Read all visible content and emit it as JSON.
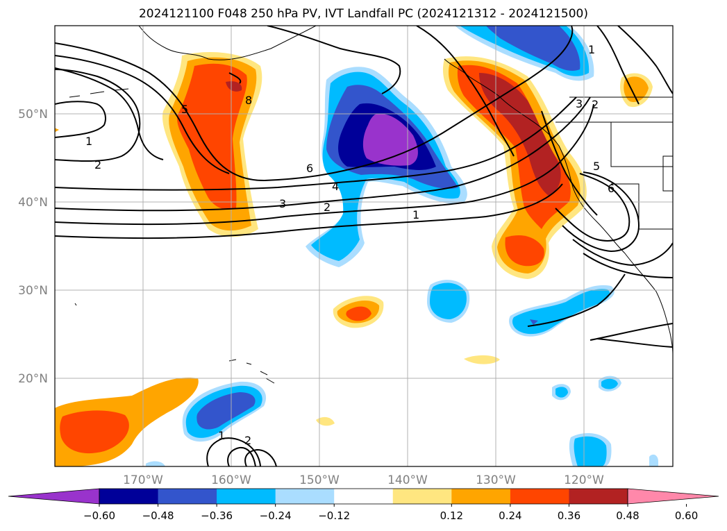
{
  "title": "2024121100 F048 250 hPa PV, IVT Landfall PC (2024121312 - 2024121500)",
  "lat_labels": [
    "50°N",
    "40°N",
    "30°N",
    "20°N"
  ],
  "lon_labels": [
    "170°W",
    "160°W",
    "150°W",
    "140°W",
    "130°W",
    "120°W"
  ],
  "colorbar": {
    "ticks": [
      "−0.60",
      "−0.48",
      "−0.36",
      "−0.24",
      "−0.12",
      "0.12",
      "0.24",
      "0.36",
      "0.48",
      "0.60"
    ],
    "colors": [
      "#9933cc",
      "#000099",
      "#3355cc",
      "#00bbff",
      "#aaddff",
      "#ffffff",
      "#ffe680",
      "#ffa500",
      "#ff4500",
      "#b22222",
      "#ff88aa"
    ]
  },
  "contour_labels": [
    "1",
    "2",
    "3",
    "4",
    "5",
    "6",
    "8",
    "1",
    "2",
    "3",
    "5",
    "6",
    "1",
    "2",
    "1",
    "2"
  ],
  "tick_color": "#808080"
}
